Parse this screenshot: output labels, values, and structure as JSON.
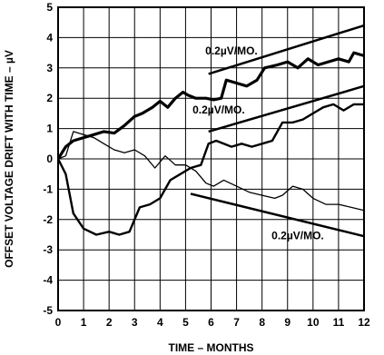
{
  "chart_data": {
    "type": "line",
    "xlabel": "TIME – MONTHS",
    "ylabel": "OFFSET VOLTAGE DRIFT WITH TIME – µV",
    "xlim": [
      0,
      12
    ],
    "ylim": [
      -5,
      5
    ],
    "xticks": [
      "0",
      "1",
      "2",
      "3",
      "4",
      "5",
      "6",
      "7",
      "8",
      "9",
      "10",
      "11",
      "12"
    ],
    "yticks": [
      "5",
      "4",
      "3",
      "2",
      "1",
      "0",
      "-1",
      "-2",
      "-3",
      "-4",
      "-5"
    ],
    "grid": true,
    "series": [
      {
        "x": [
          0,
          0.3,
          0.6,
          1,
          1.4,
          1.8,
          2.2,
          2.6,
          3,
          3.3,
          3.7,
          4,
          4.3,
          4.6,
          4.9,
          5.1,
          5.4,
          5.8,
          6.1,
          6.4,
          6.6,
          7,
          7.4,
          7.8,
          8.1,
          8.6,
          9,
          9.4,
          9.8,
          10.2,
          10.6,
          11,
          11.4,
          11.6,
          12
        ],
        "y": [
          0,
          0.4,
          0.6,
          0.7,
          0.8,
          0.9,
          0.85,
          1.1,
          1.4,
          1.5,
          1.7,
          1.9,
          1.7,
          2.0,
          2.2,
          2.1,
          2.0,
          2.0,
          1.95,
          2.0,
          2.6,
          2.5,
          2.4,
          2.6,
          3.0,
          3.1,
          3.2,
          3.0,
          3.3,
          3.1,
          3.2,
          3.3,
          3.2,
          3.5,
          3.4
        ]
      },
      {
        "x": [
          0,
          0.3,
          0.6,
          1,
          1.5,
          2,
          2.4,
          2.8,
          3.2,
          3.6,
          4,
          4.4,
          4.8,
          5.2,
          5.6,
          5.9,
          6.2,
          6.5,
          6.8,
          7.2,
          7.6,
          8,
          8.4,
          8.8,
          9.2,
          9.6,
          10,
          10.4,
          10.8,
          11.2,
          11.6,
          12
        ],
        "y": [
          0,
          -0.5,
          -1.8,
          -2.3,
          -2.5,
          -2.4,
          -2.5,
          -2.4,
          -1.6,
          -1.5,
          -1.3,
          -0.7,
          -0.5,
          -0.3,
          -0.2,
          0.5,
          0.6,
          0.5,
          0.4,
          0.5,
          0.4,
          0.5,
          0.6,
          1.2,
          1.2,
          1.3,
          1.5,
          1.7,
          1.8,
          1.6,
          1.8,
          1.8
        ]
      },
      {
        "x": [
          0,
          0.3,
          0.6,
          1,
          1.4,
          1.8,
          2.2,
          2.6,
          3,
          3.4,
          3.8,
          4.2,
          4.6,
          5,
          5.4,
          5.8,
          6.1,
          6.5,
          7,
          7.5,
          8,
          8.5,
          8.8,
          9.2,
          9.6,
          10,
          10.5,
          11,
          11.5,
          12
        ],
        "y": [
          0,
          0.1,
          0.9,
          0.8,
          0.7,
          0.5,
          0.3,
          0.2,
          0.3,
          0.1,
          -0.3,
          0.1,
          -0.2,
          -0.2,
          -0.4,
          -0.8,
          -0.9,
          -0.7,
          -0.9,
          -1.1,
          -1.2,
          -1.3,
          -1.2,
          -0.9,
          -1.0,
          -1.3,
          -1.5,
          -1.5,
          -1.6,
          -1.7
        ]
      }
    ],
    "reference_lines": [
      {
        "x": [
          5.9,
          12
        ],
        "y": [
          2.8,
          4.4
        ]
      },
      {
        "x": [
          5.9,
          12
        ],
        "y": [
          0.9,
          2.4
        ]
      },
      {
        "x": [
          5.2,
          12
        ],
        "y": [
          -1.15,
          -2.55
        ]
      }
    ],
    "annotations": [
      {
        "text": "0.2µV/MO.",
        "x": 6.8,
        "y": 3.45
      },
      {
        "text": "0.2µV/MO.",
        "x": 6.3,
        "y": 1.5
      },
      {
        "text": "0.2µV/MO.",
        "x": 9.4,
        "y": -2.65
      }
    ]
  }
}
